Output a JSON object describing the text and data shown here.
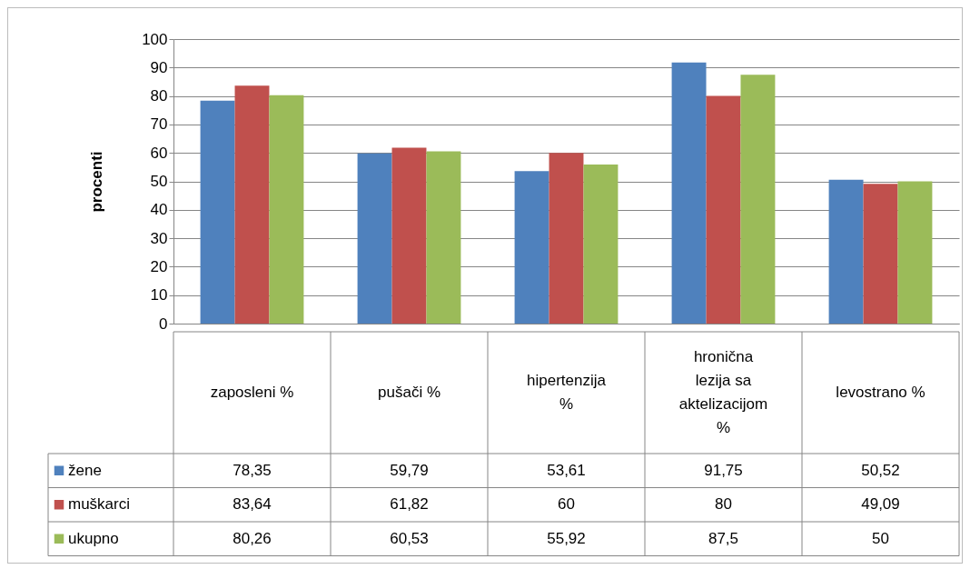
{
  "chart_data": {
    "type": "bar",
    "ylabel": "procenti",
    "categories": [
      "zaposleni %",
      "pušači %",
      "hipertenzija %",
      "hronična lezija sa aktelizacijom %",
      "levostrano %"
    ],
    "series": [
      {
        "name": "žene",
        "color": "#4f81bd",
        "values": [
          78.35,
          59.79,
          53.61,
          91.75,
          50.52
        ],
        "value_labels": [
          "78,35",
          "59,79",
          "53,61",
          "91,75",
          "50,52"
        ]
      },
      {
        "name": "muškarci",
        "color": "#c0504d",
        "values": [
          83.64,
          61.82,
          60,
          80,
          49.09
        ],
        "value_labels": [
          "83,64",
          "61,82",
          "60",
          "80",
          "49,09"
        ]
      },
      {
        "name": "ukupno",
        "color": "#9bbb59",
        "values": [
          80.26,
          60.53,
          55.92,
          87.5,
          50
        ],
        "value_labels": [
          "80,26",
          "60,53",
          "55,92",
          "87,5",
          "50"
        ]
      }
    ],
    "ylim": [
      0,
      100
    ],
    "yticks": [
      0,
      10,
      20,
      30,
      40,
      50,
      60,
      70,
      80,
      90,
      100
    ],
    "grid": "y",
    "legend": "bottom"
  }
}
